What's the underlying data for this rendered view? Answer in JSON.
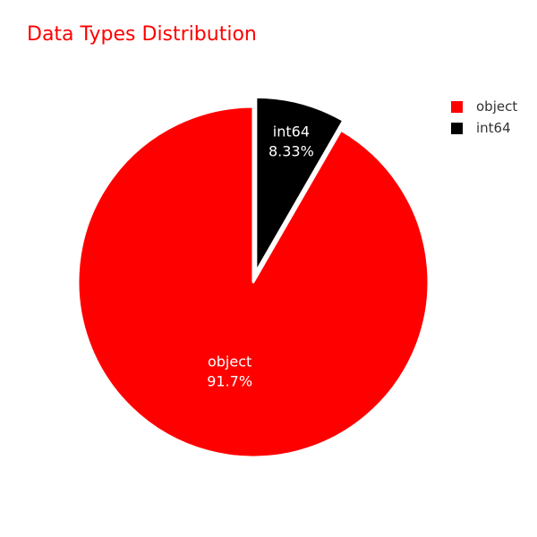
{
  "chart_data": {
    "type": "pie",
    "title": "Data Types Distribution",
    "title_color": "#ff0000",
    "categories": [
      "object",
      "int64"
    ],
    "values": [
      91.67,
      8.33
    ],
    "percent_labels": [
      "91.7%",
      "8.33%"
    ],
    "colors": [
      "#ff0000",
      "#000000"
    ],
    "pulled_slice": "int64",
    "legend": {
      "placement": "top-right",
      "entries": [
        "object",
        "int64"
      ]
    }
  }
}
